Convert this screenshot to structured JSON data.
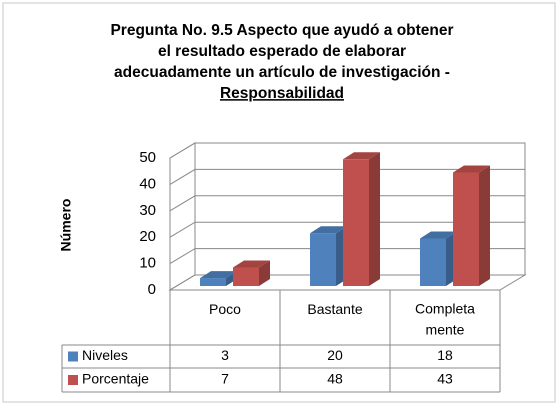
{
  "chart_data": {
    "type": "bar3d",
    "title": [
      "Pregunta No. 9.5  Aspecto que ayudó a obtener",
      "el resultado esperado de elaborar",
      "adecuadamente  un artículo de investigación  -",
      "Responsabilidad"
    ],
    "y_label": "Número",
    "categories": [
      "Poco",
      "Bastante",
      "Completa mente"
    ],
    "series": [
      {
        "name": "Niveles",
        "color": "#4f81bd",
        "values": [
          3,
          20,
          18
        ]
      },
      {
        "name": "Porcentaje",
        "color": "#c0504d",
        "values": [
          7,
          48,
          43
        ]
      }
    ],
    "ylim": [
      0,
      50
    ],
    "yticks": [
      0,
      10,
      20,
      30,
      40,
      50
    ],
    "grid": true,
    "legend": "table"
  }
}
